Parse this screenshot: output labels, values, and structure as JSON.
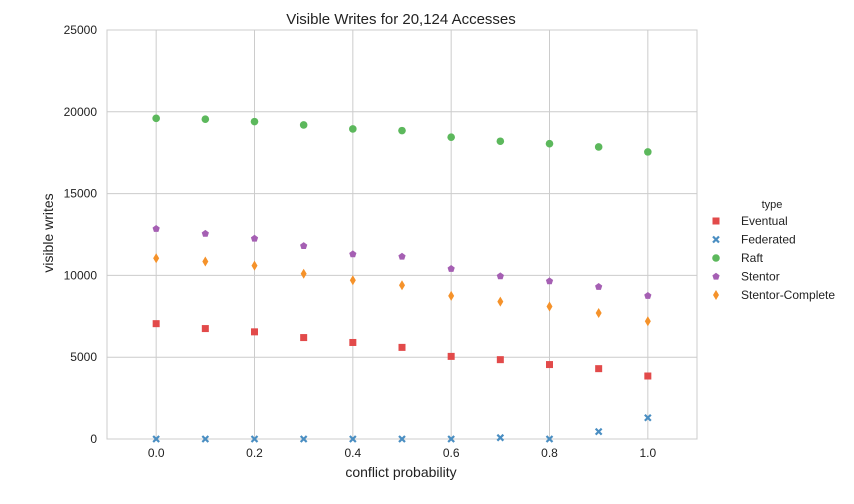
{
  "chart_data": {
    "type": "scatter",
    "title": "Visible Writes for 20,124 Accesses",
    "xlabel": "conflict probability",
    "ylabel": "visible writes",
    "xlim": [
      -0.1,
      1.1
    ],
    "ylim": [
      0,
      25000
    ],
    "x_ticks": [
      "0.0",
      "0.2",
      "0.4",
      "0.6",
      "0.8",
      "1.0"
    ],
    "y_ticks": [
      "0",
      "5000",
      "10000",
      "15000",
      "20000",
      "25000"
    ],
    "grid": true,
    "legend_title": "type",
    "legend_position": "right",
    "x": [
      0.0,
      0.1,
      0.2,
      0.3,
      0.4,
      0.5,
      0.6,
      0.7,
      0.8,
      0.9,
      1.0
    ],
    "series": [
      {
        "name": "Eventual",
        "marker": "square",
        "color": "#e24a4a",
        "values": [
          7050,
          6750,
          6550,
          6200,
          5900,
          5600,
          5050,
          4850,
          4550,
          4300,
          3850
        ]
      },
      {
        "name": "Federated",
        "marker": "x",
        "color": "#4a8ec2",
        "values": [
          0,
          0,
          0,
          0,
          0,
          0,
          0,
          80,
          0,
          450,
          1300
        ]
      },
      {
        "name": "Raft",
        "marker": "circle",
        "color": "#5cb85c",
        "values": [
          19600,
          19550,
          19400,
          19200,
          18950,
          18850,
          18450,
          18200,
          18050,
          17850,
          17550
        ]
      },
      {
        "name": "Stentor",
        "marker": "pentagon",
        "color": "#a55fb3",
        "values": [
          12850,
          12550,
          12250,
          11800,
          11300,
          11150,
          10400,
          9950,
          9650,
          9300,
          8750
        ]
      },
      {
        "name": "Stentor-Complete",
        "marker": "diamond",
        "color": "#f5922a",
        "values": [
          11050,
          10850,
          10600,
          10100,
          9700,
          9400,
          8750,
          8400,
          8100,
          7700,
          7200
        ]
      }
    ]
  }
}
